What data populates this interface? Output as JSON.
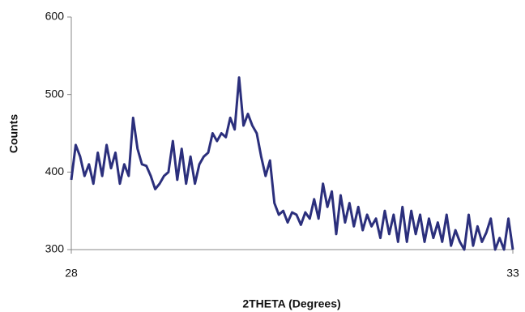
{
  "chart_data": {
    "type": "line",
    "xlabel": "2THETA (Degrees)",
    "ylabel": "Counts",
    "x": [
      28.0,
      28.05,
      28.1,
      28.15,
      28.2,
      28.25,
      28.3,
      28.35,
      28.4,
      28.45,
      28.5,
      28.55,
      28.6,
      28.65,
      28.7,
      28.75,
      28.8,
      28.85,
      28.9,
      28.95,
      29.0,
      29.05,
      29.1,
      29.15,
      29.2,
      29.25,
      29.3,
      29.35,
      29.4,
      29.45,
      29.5,
      29.55,
      29.6,
      29.65,
      29.7,
      29.75,
      29.8,
      29.85,
      29.9,
      29.95,
      30.0,
      30.05,
      30.1,
      30.15,
      30.2,
      30.25,
      30.3,
      30.35,
      30.4,
      30.45,
      30.5,
      30.55,
      30.6,
      30.65,
      30.7,
      30.75,
      30.8,
      30.85,
      30.9,
      30.95,
      31.0,
      31.05,
      31.1,
      31.15,
      31.2,
      31.25,
      31.3,
      31.35,
      31.4,
      31.45,
      31.5,
      31.55,
      31.6,
      31.65,
      31.7,
      31.75,
      31.8,
      31.85,
      31.9,
      31.95,
      32.0,
      32.05,
      32.1,
      32.15,
      32.2,
      32.25,
      32.3,
      32.35,
      32.4,
      32.45,
      32.5,
      32.55,
      32.6,
      32.65,
      32.7,
      32.75,
      32.8,
      32.85,
      32.9,
      32.95,
      33.0
    ],
    "series": [
      {
        "name": "Counts",
        "color": "#2b2f7c",
        "values": [
          390,
          435,
          420,
          395,
          410,
          385,
          425,
          395,
          435,
          405,
          425,
          385,
          410,
          395,
          470,
          430,
          410,
          408,
          395,
          378,
          385,
          395,
          400,
          440,
          390,
          430,
          385,
          420,
          385,
          410,
          420,
          425,
          450,
          440,
          450,
          445,
          470,
          455,
          522,
          460,
          475,
          460,
          450,
          420,
          395,
          415,
          360,
          345,
          350,
          335,
          348,
          345,
          332,
          348,
          340,
          365,
          340,
          385,
          355,
          375,
          320,
          370,
          335,
          360,
          330,
          355,
          325,
          345,
          330,
          340,
          315,
          350,
          320,
          345,
          310,
          355,
          310,
          350,
          320,
          345,
          310,
          340,
          315,
          335,
          310,
          345,
          305,
          325,
          310,
          300,
          345,
          305,
          330,
          310,
          322,
          340,
          300,
          315,
          300,
          340,
          300
        ]
      }
    ],
    "xlim": [
      28,
      33
    ],
    "ylim": [
      300,
      600
    ],
    "xticks": [
      28,
      33
    ],
    "yticks": [
      300,
      400,
      500,
      600
    ]
  }
}
